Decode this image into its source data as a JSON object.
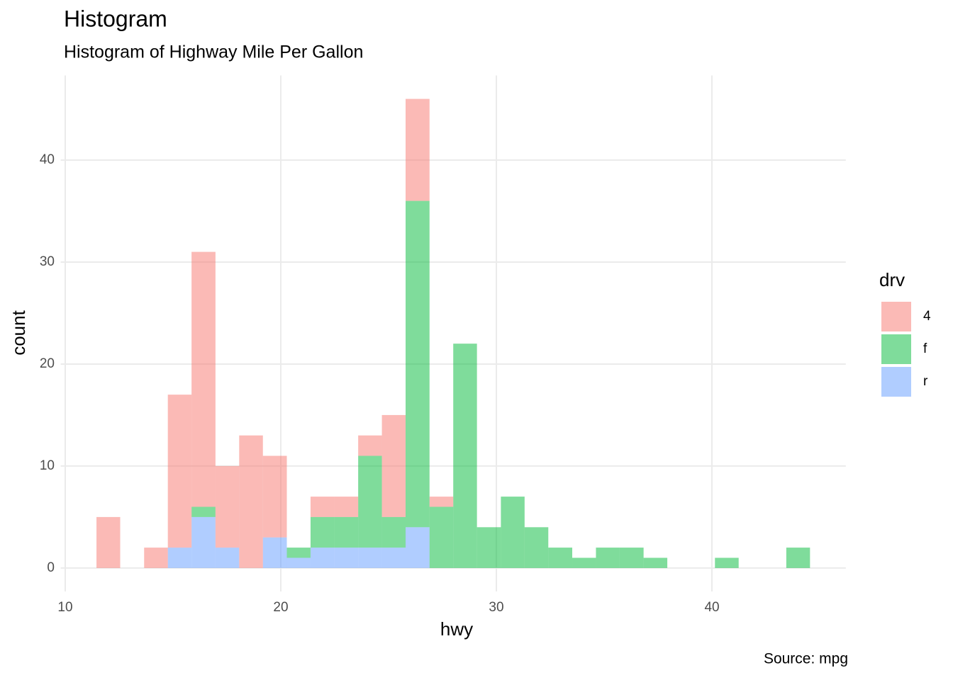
{
  "chart_data": {
    "type": "histogram",
    "title": "Histogram",
    "subtitle": "Histogram of Highway Mile Per Gallon",
    "caption": "Source: mpg",
    "x_label": "hwy",
    "y_label": "count",
    "legend_title": "drv",
    "legend_position": "right",
    "stacked": true,
    "alpha": 0.5,
    "grid": true,
    "bins": [
      11.45,
      12.55,
      13.66,
      14.76,
      15.86,
      16.97,
      18.07,
      19.17,
      20.28,
      21.38,
      22.48,
      23.59,
      24.69,
      25.79,
      26.9,
      28.0,
      29.1,
      30.21,
      31.31,
      32.41,
      33.52,
      34.62,
      35.72,
      36.83,
      37.93,
      39.03,
      40.14,
      41.24,
      42.34,
      43.45,
      44.55
    ],
    "series": [
      {
        "name": "4",
        "color": "#F8766D",
        "values": [
          5,
          0,
          2,
          15,
          25,
          8,
          13,
          8,
          0,
          2,
          2,
          2,
          10,
          10,
          1,
          0,
          0,
          0,
          0,
          0,
          0,
          0,
          0,
          0,
          0,
          0,
          0,
          0,
          0,
          0
        ]
      },
      {
        "name": "f",
        "color": "#00BA38",
        "values": [
          0,
          0,
          0,
          0,
          1,
          0,
          0,
          0,
          1,
          3,
          3,
          9,
          3,
          32,
          6,
          22,
          4,
          7,
          4,
          2,
          1,
          2,
          2,
          1,
          0,
          0,
          1,
          0,
          0,
          2
        ]
      },
      {
        "name": "r",
        "color": "#619CFF",
        "values": [
          0,
          0,
          0,
          2,
          5,
          2,
          0,
          3,
          1,
          2,
          2,
          2,
          2,
          4,
          0,
          0,
          0,
          0,
          0,
          0,
          0,
          0,
          0,
          0,
          0,
          0,
          0,
          0,
          0,
          0
        ]
      }
    ],
    "xlim": [
      9.79,
      46.21
    ],
    "ylim": [
      -2.3,
      48.3
    ],
    "xticks": [
      10,
      20,
      30,
      40
    ],
    "yticks": [
      0,
      10,
      20,
      30,
      40
    ]
  }
}
